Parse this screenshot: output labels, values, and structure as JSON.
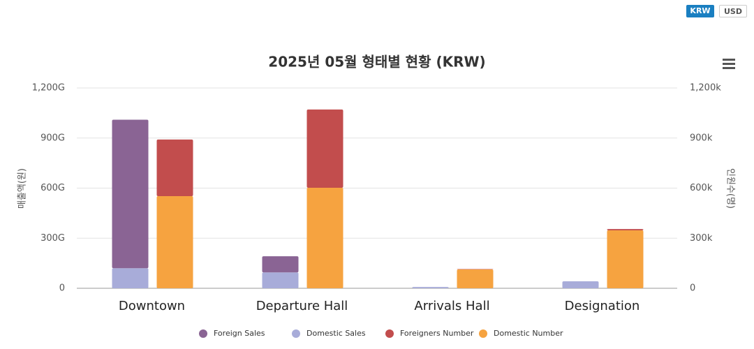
{
  "currency_buttons": [
    "KRW",
    "USD"
  ],
  "chart_data": {
    "type": "bar",
    "title": "2025년 05월 형태별 현황 (KRW)",
    "categories": [
      "Downtown",
      "Departure Hall",
      "Arrivals Hall",
      "Designation"
    ],
    "series": [
      {
        "name": "Foreign Sales",
        "color": "#8a6494",
        "values": [
          890,
          97,
          0,
          0
        ],
        "axis": "y"
      },
      {
        "name": "Domestic Sales",
        "color": "#a8acd9",
        "values": [
          120,
          95,
          8,
          42
        ],
        "axis": "y"
      },
      {
        "name": "Foreigners Number",
        "color": "#c24d4d",
        "values": [
          339,
          469,
          2,
          8
        ],
        "axis": "y2"
      },
      {
        "name": "Domestic Number",
        "color": "#f6a340",
        "values": [
          552,
          602,
          113,
          347
        ],
        "axis": "y2"
      }
    ],
    "y_label": "매출액(원)",
    "y2_label": "인원수(명)",
    "ylim": [
      0,
      1200
    ],
    "yticks": [
      0,
      {
        "value": 300,
        "label": "300G"
      },
      {
        "value": 600,
        "label": "600G"
      },
      {
        "value": 900,
        "label": "900G"
      },
      {
        "value": 1200,
        "label": "1,200G"
      }
    ],
    "y2lim": [
      0,
      1200
    ],
    "y2ticks": [
      0,
      {
        "value": 300,
        "label": "300k"
      },
      {
        "value": 600,
        "label": "600k"
      },
      {
        "value": 900,
        "label": "900k"
      },
      {
        "value": 1200,
        "label": "1,200k"
      }
    ],
    "grid": true
  }
}
